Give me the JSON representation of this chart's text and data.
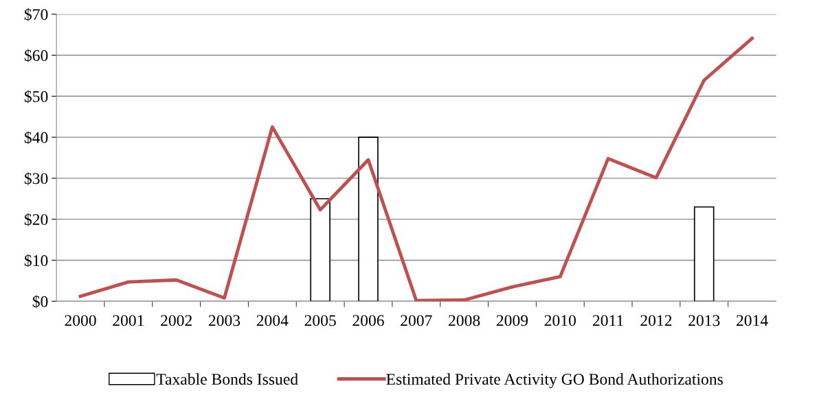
{
  "chart_data": {
    "type": "line",
    "categories": [
      "2000",
      "2001",
      "2002",
      "2003",
      "2004",
      "2005",
      "2006",
      "2007",
      "2008",
      "2009",
      "2010",
      "2011",
      "2012",
      "2013",
      "2014"
    ],
    "series": [
      {
        "name": "Taxable Bonds Issued",
        "type": "bar",
        "color": "#ffffff",
        "values": [
          null,
          null,
          null,
          null,
          null,
          25,
          40,
          null,
          null,
          null,
          null,
          null,
          null,
          23,
          null
        ]
      },
      {
        "name": "Estimated Private Activity GO Bond Authorizations",
        "color": "#c0504d",
        "values": [
          1.2,
          4.7,
          5.2,
          0.8,
          42.5,
          22.3,
          34.5,
          0.2,
          0.3,
          3.5,
          6.0,
          34.8,
          30.1,
          53.9,
          64.1
        ]
      }
    ],
    "ylim": [
      0,
      70
    ],
    "yticks": [
      {
        "value": 0,
        "label": "$0"
      },
      {
        "value": 10,
        "label": "$10"
      },
      {
        "value": 20,
        "label": "$20"
      },
      {
        "value": 30,
        "label": "$30"
      },
      {
        "value": 40,
        "label": "$40"
      },
      {
        "value": 50,
        "label": "$50"
      },
      {
        "value": 60,
        "label": "$60"
      },
      {
        "value": 70,
        "label": "$70"
      }
    ],
    "grid": "y",
    "legend": "bottom",
    "marker": "none",
    "line_style": "solid"
  }
}
